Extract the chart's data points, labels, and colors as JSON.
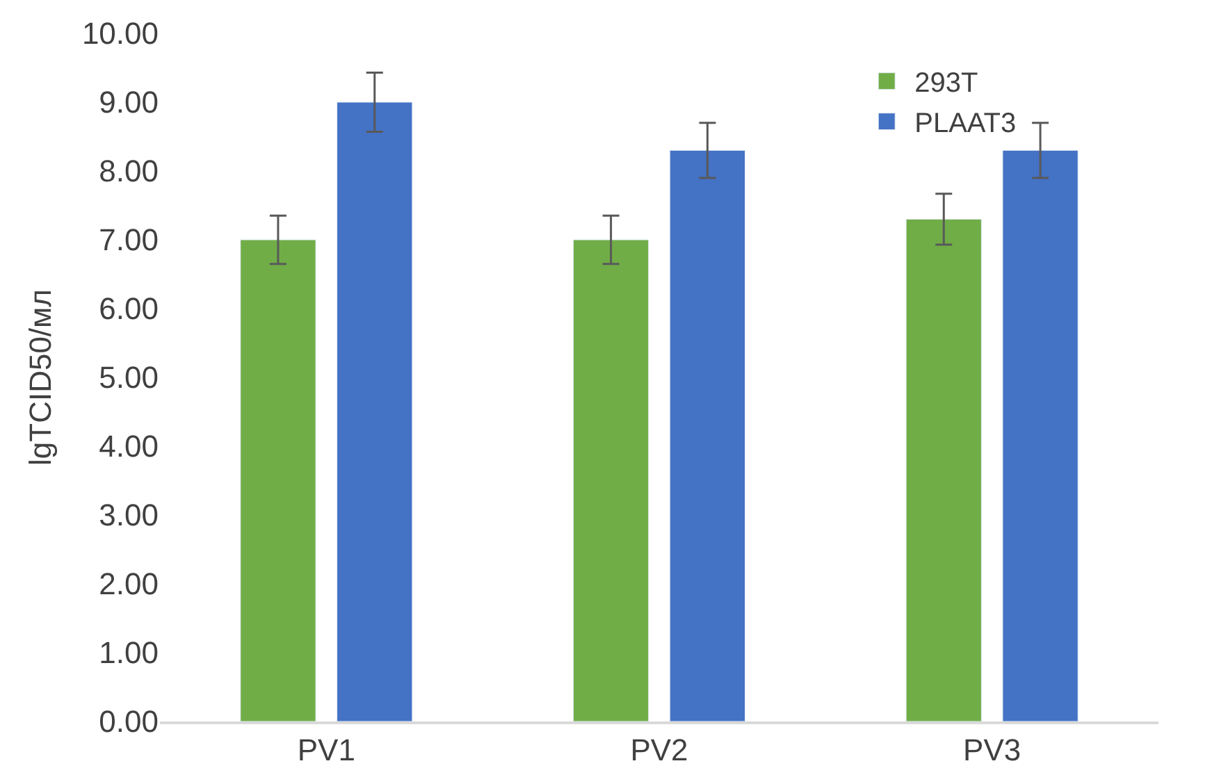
{
  "chart_data": {
    "type": "bar",
    "ylabel": "lgTCID50/мл",
    "categories": [
      "PV1",
      "PV2",
      "PV3"
    ],
    "series": [
      {
        "name": "293T",
        "color": "#70ad47",
        "values": [
          7.0,
          7.0,
          7.3
        ],
        "errors": [
          0.35,
          0.35,
          0.37
        ]
      },
      {
        "name": "PLAAT3",
        "color": "#4472c4",
        "values": [
          9.0,
          8.3,
          8.3
        ],
        "errors": [
          0.43,
          0.4,
          0.4
        ]
      }
    ],
    "ylim": [
      0,
      10
    ],
    "yticks": [
      {
        "value": 0,
        "label": "0.00"
      },
      {
        "value": 1,
        "label": "1.00"
      },
      {
        "value": 2,
        "label": "2.00"
      },
      {
        "value": 3,
        "label": "3.00"
      },
      {
        "value": 4,
        "label": "4.00"
      },
      {
        "value": 5,
        "label": "5.00"
      },
      {
        "value": 6,
        "label": "6.00"
      },
      {
        "value": 7,
        "label": "7.00"
      },
      {
        "value": 8,
        "label": "8.00"
      },
      {
        "value": 9,
        "label": "9.00"
      },
      {
        "value": 10,
        "label": "10.00"
      }
    ],
    "grid": false,
    "legend": "top right"
  }
}
